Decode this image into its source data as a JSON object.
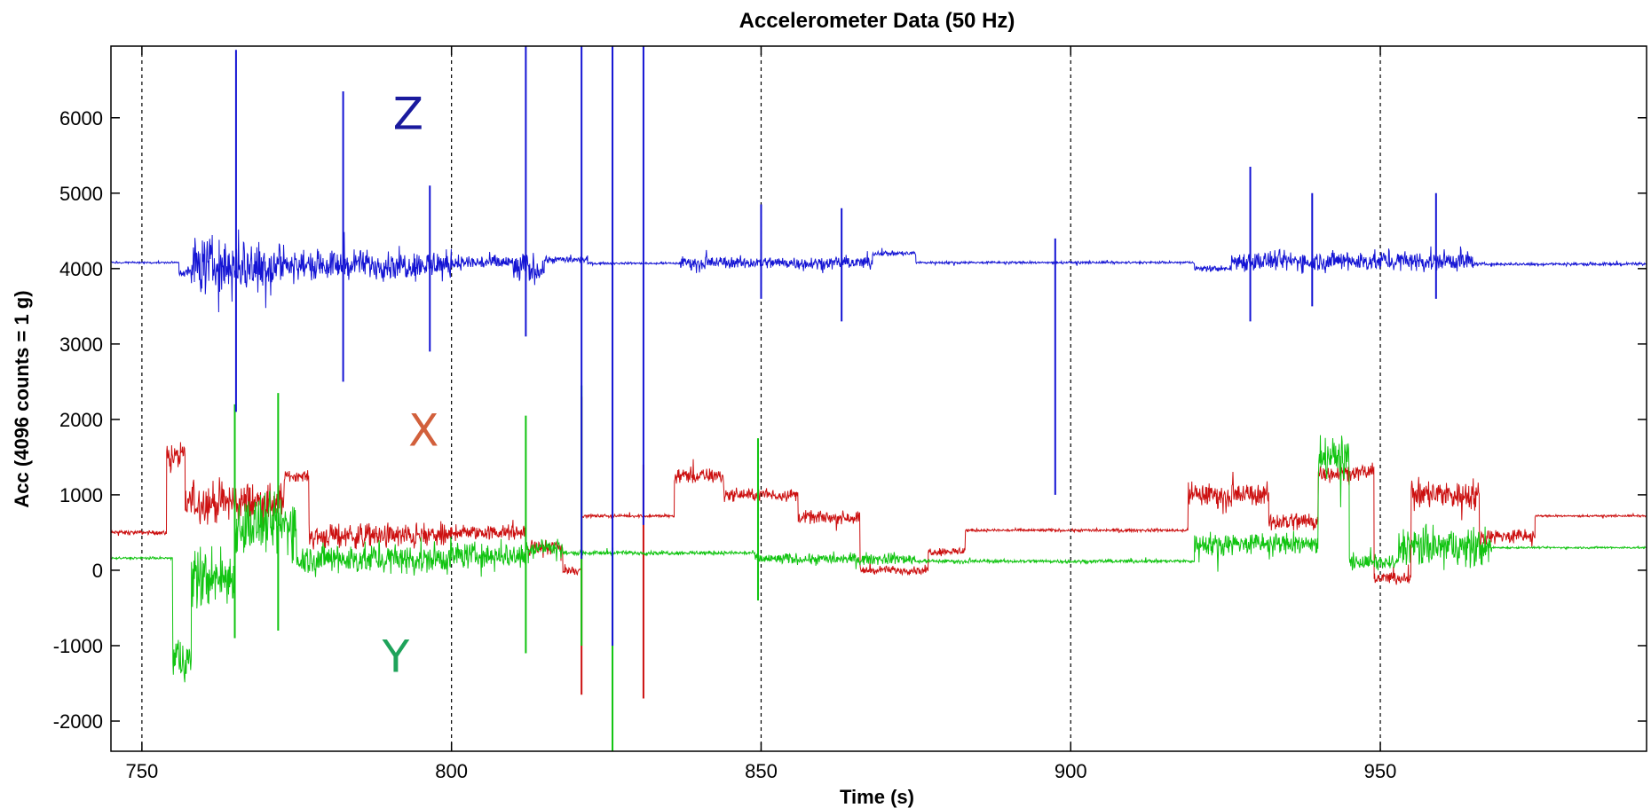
{
  "chart_data": {
    "type": "line",
    "title": "Accelerometer Data (50 Hz)",
    "xlabel": "Time (s)",
    "ylabel": "Acc (4096 counts = 1 g)",
    "xlim": [
      745,
      993
    ],
    "ylim": [
      -2400,
      6950
    ],
    "xticks": [
      750,
      800,
      850,
      900,
      950
    ],
    "yticks": [
      -2000,
      -1000,
      0,
      1000,
      2000,
      3000,
      4000,
      5000,
      6000
    ],
    "grid": "x-dashed",
    "series": [
      {
        "name": "Z",
        "color": "#1414d4",
        "segments": [
          {
            "t0": 745,
            "t1": 756,
            "base": 4080,
            "noise": 20
          },
          {
            "t0": 756,
            "t1": 758,
            "base": 3950,
            "noise": 80
          },
          {
            "t0": 758,
            "t1": 773,
            "base": 4050,
            "noise": 550
          },
          {
            "t0": 773,
            "t1": 800,
            "base": 4050,
            "noise": 280
          },
          {
            "t0": 800,
            "t1": 810,
            "base": 4080,
            "noise": 150
          },
          {
            "t0": 810,
            "t1": 815,
            "base": 4000,
            "noise": 300
          },
          {
            "t0": 815,
            "t1": 822,
            "base": 4120,
            "noise": 70
          },
          {
            "t0": 822,
            "t1": 837,
            "base": 4070,
            "noise": 20
          },
          {
            "t0": 837,
            "t1": 868,
            "base": 4080,
            "noise": 120
          },
          {
            "t0": 868,
            "t1": 875,
            "base": 4200,
            "noise": 50
          },
          {
            "t0": 875,
            "t1": 920,
            "base": 4080,
            "noise": 25
          },
          {
            "t0": 920,
            "t1": 926,
            "base": 4000,
            "noise": 60
          },
          {
            "t0": 926,
            "t1": 965,
            "base": 4100,
            "noise": 200
          },
          {
            "t0": 965,
            "t1": 993,
            "base": 4060,
            "noise": 30
          }
        ],
        "spikes": [
          [
            765.2,
            6900,
            2100
          ],
          [
            782.5,
            6350,
            2500
          ],
          [
            796.5,
            5100,
            2900
          ],
          [
            812.0,
            6950,
            3100
          ],
          [
            821.0,
            6950,
            150
          ],
          [
            826.0,
            6950,
            -1000
          ],
          [
            831.0,
            6950,
            600
          ],
          [
            850.0,
            4850,
            3600
          ],
          [
            863.0,
            4800,
            3300
          ],
          [
            897.5,
            4400,
            1000
          ],
          [
            929.0,
            5350,
            3300
          ],
          [
            939.0,
            5000,
            3500
          ],
          [
            959.0,
            5000,
            3600
          ]
        ]
      },
      {
        "name": "X",
        "color": "#cc1010",
        "segments": [
          {
            "t0": 745,
            "t1": 754,
            "base": 500,
            "noise": 40
          },
          {
            "t0": 754,
            "t1": 757,
            "base": 1500,
            "noise": 250
          },
          {
            "t0": 757,
            "t1": 773,
            "base": 900,
            "noise": 400
          },
          {
            "t0": 773,
            "t1": 777,
            "base": 1250,
            "noise": 100
          },
          {
            "t0": 777,
            "t1": 800,
            "base": 450,
            "noise": 250
          },
          {
            "t0": 800,
            "t1": 812,
            "base": 500,
            "noise": 150
          },
          {
            "t0": 812,
            "t1": 818,
            "base": 300,
            "noise": 150
          },
          {
            "t0": 818,
            "t1": 821,
            "base": 0,
            "noise": 100
          },
          {
            "t0": 821,
            "t1": 836,
            "base": 720,
            "noise": 30
          },
          {
            "t0": 836,
            "t1": 844,
            "base": 1250,
            "noise": 150
          },
          {
            "t0": 844,
            "t1": 856,
            "base": 1000,
            "noise": 120
          },
          {
            "t0": 856,
            "t1": 866,
            "base": 700,
            "noise": 120
          },
          {
            "t0": 866,
            "t1": 877,
            "base": 0,
            "noise": 80
          },
          {
            "t0": 877,
            "t1": 883,
            "base": 250,
            "noise": 80
          },
          {
            "t0": 883,
            "t1": 919,
            "base": 530,
            "noise": 30
          },
          {
            "t0": 919,
            "t1": 932,
            "base": 1000,
            "noise": 220
          },
          {
            "t0": 932,
            "t1": 940,
            "base": 650,
            "noise": 200
          },
          {
            "t0": 940,
            "t1": 949,
            "base": 1300,
            "noise": 150
          },
          {
            "t0": 949,
            "t1": 955,
            "base": -100,
            "noise": 120
          },
          {
            "t0": 955,
            "t1": 966,
            "base": 1000,
            "noise": 300
          },
          {
            "t0": 966,
            "t1": 975,
            "base": 450,
            "noise": 150
          },
          {
            "t0": 975,
            "t1": 993,
            "base": 720,
            "noise": 20
          }
        ],
        "spikes": [
          [
            821.0,
            2300,
            -1650
          ],
          [
            831.0,
            1400,
            -1700
          ]
        ]
      },
      {
        "name": "Y",
        "color": "#10c410",
        "segments": [
          {
            "t0": 745,
            "t1": 755,
            "base": 160,
            "noise": 25
          },
          {
            "t0": 755,
            "t1": 758,
            "base": -1200,
            "noise": 500
          },
          {
            "t0": 758,
            "t1": 765,
            "base": -100,
            "noise": 600
          },
          {
            "t0": 765,
            "t1": 775,
            "base": 600,
            "noise": 600
          },
          {
            "t0": 775,
            "t1": 800,
            "base": 150,
            "noise": 300
          },
          {
            "t0": 800,
            "t1": 812,
            "base": 200,
            "noise": 250
          },
          {
            "t0": 812,
            "t1": 818,
            "base": 300,
            "noise": 200
          },
          {
            "t0": 818,
            "t1": 849,
            "base": 230,
            "noise": 40
          },
          {
            "t0": 849,
            "t1": 875,
            "base": 150,
            "noise": 110
          },
          {
            "t0": 875,
            "t1": 920,
            "base": 120,
            "noise": 35
          },
          {
            "t0": 920,
            "t1": 940,
            "base": 350,
            "noise": 220
          },
          {
            "t0": 940,
            "t1": 945,
            "base": 1500,
            "noise": 400
          },
          {
            "t0": 945,
            "t1": 953,
            "base": 100,
            "noise": 150
          },
          {
            "t0": 953,
            "t1": 968,
            "base": 300,
            "noise": 400
          },
          {
            "t0": 968,
            "t1": 993,
            "base": 300,
            "noise": 20
          }
        ],
        "spikes": [
          [
            765.0,
            2200,
            -900
          ],
          [
            772.0,
            2350,
            -800
          ],
          [
            812.0,
            2050,
            -1100
          ],
          [
            821.0,
            2450,
            -1000
          ],
          [
            826.0,
            300,
            -2400
          ],
          [
            849.5,
            1750,
            -400
          ]
        ]
      }
    ],
    "annotations": [
      {
        "text": "Z",
        "x": 793,
        "y": 5850,
        "color": "#1a1a9e"
      },
      {
        "text": "X",
        "x": 795.5,
        "y": 1650,
        "color": "#d2603c"
      },
      {
        "text": "Y",
        "x": 791,
        "y": -1350,
        "color": "#1ea35a"
      }
    ]
  }
}
